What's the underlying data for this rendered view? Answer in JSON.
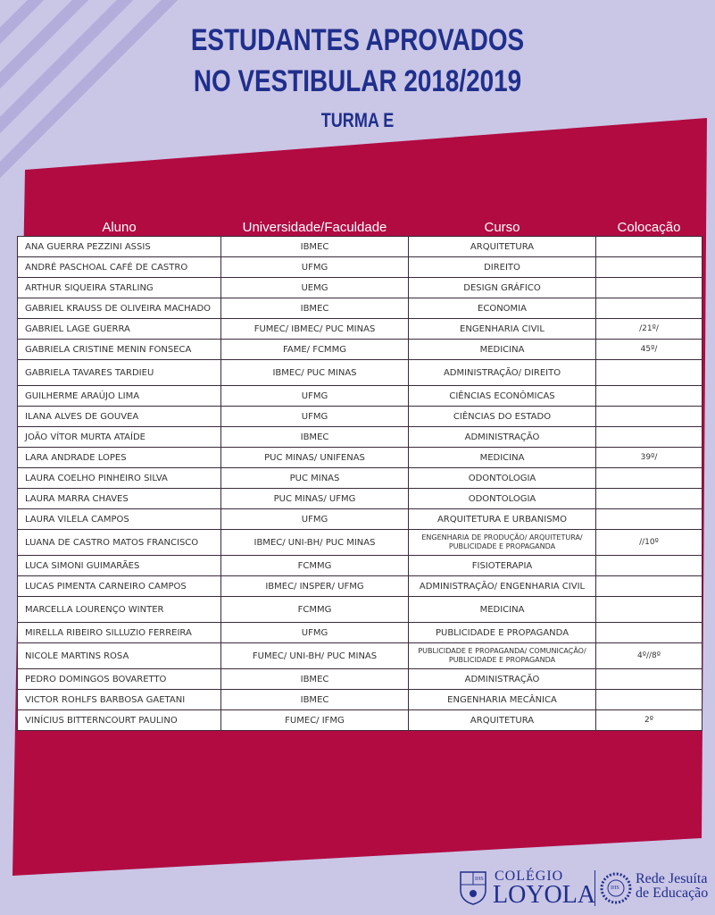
{
  "header": {
    "line1": "ESTUDANTES APROVADOS",
    "line2": "NO VESTIBULAR 2018/2019",
    "class": "TURMA E"
  },
  "colors": {
    "background": "#cac6e6",
    "panel": "#b10b42",
    "title": "#1f2f8c",
    "stripes": "#b3addb"
  },
  "table": {
    "columns": [
      "Aluno",
      "Universidade/Faculdade",
      "Curso",
      "Colocação"
    ],
    "rows": [
      {
        "aluno": "ANA GUERRA PEZZINI ASSIS",
        "univ": "IBMEC",
        "curso": "ARQUITETURA",
        "col": ""
      },
      {
        "aluno": "ANDRÉ PASCHOAL CAFÉ DE CASTRO",
        "univ": "UFMG",
        "curso": "DIREITO",
        "col": ""
      },
      {
        "aluno": "ARTHUR SIQUEIRA STARLING",
        "univ": "UEMG",
        "curso": "DESIGN GRÁFICO",
        "col": ""
      },
      {
        "aluno": "GABRIEL KRAUSS DE OLIVEIRA MACHADO",
        "univ": "IBMEC",
        "curso": "ECONOMIA",
        "col": ""
      },
      {
        "aluno": "GABRIEL LAGE GUERRA",
        "univ": "FUMEC/ IBMEC/ PUC MINAS",
        "curso": "ENGENHARIA CIVIL",
        "col": "/21º/"
      },
      {
        "aluno": "GABRIELA CRISTINE MENIN FONSECA",
        "univ": "FAME/ FCMMG",
        "curso": "MEDICINA",
        "col": "45º/"
      },
      {
        "aluno": "GABRIELA TAVARES TARDIEU",
        "univ": "IBMEC/ PUC MINAS",
        "curso": "ADMINISTRAÇÃO/ DIREITO",
        "col": ""
      },
      {
        "aluno": "GUILHERME ARAÚJO LIMA",
        "univ": "UFMG",
        "curso": "CIÊNCIAS ECONÔMICAS",
        "col": ""
      },
      {
        "aluno": "ILANA ALVES DE GOUVEA",
        "univ": "UFMG",
        "curso": "CIÊNCIAS DO ESTADO",
        "col": ""
      },
      {
        "aluno": "JOÃO VÍTOR MURTA ATAÍDE",
        "univ": "IBMEC",
        "curso": "ADMINISTRAÇÃO",
        "col": ""
      },
      {
        "aluno": "LARA ANDRADE LOPES",
        "univ": "PUC MINAS/ UNIFENAS",
        "curso": "MEDICINA",
        "col": "39º/"
      },
      {
        "aluno": "LAURA COELHO PINHEIRO SILVA",
        "univ": "PUC MINAS",
        "curso": "ODONTOLOGIA",
        "col": ""
      },
      {
        "aluno": "LAURA MARRA CHAVES",
        "univ": "PUC MINAS/ UFMG",
        "curso": "ODONTOLOGIA",
        "col": ""
      },
      {
        "aluno": "LAURA VILELA CAMPOS",
        "univ": "UFMG",
        "curso": "ARQUITETURA E URBANISMO",
        "col": ""
      },
      {
        "aluno": "LUANA DE CASTRO MATOS FRANCISCO",
        "univ": "IBMEC/ UNI-BH/ PUC MINAS",
        "curso": "ENGENHARIA DE PRODUÇÃO/ ARQUITETURA/ PUBLICIDADE E PROPAGANDA",
        "col": "//10º"
      },
      {
        "aluno": "LUCA SIMONI GUIMARÃES",
        "univ": "FCMMG",
        "curso": "FISIOTERAPIA",
        "col": ""
      },
      {
        "aluno": "LUCAS PIMENTA CARNEIRO CAMPOS",
        "univ": "IBMEC/ INSPER/ UFMG",
        "curso": "ADMINISTRAÇÃO/ ENGENHARIA CIVIL",
        "col": ""
      },
      {
        "aluno": "MARCELLA LOURENÇO WINTER",
        "univ": "FCMMG",
        "curso": "MEDICINA",
        "col": ""
      },
      {
        "aluno": "MIRELLA RIBEIRO SILLUZIO FERREIRA",
        "univ": "UFMG",
        "curso": "PUBLICIDADE E PROPAGANDA",
        "col": ""
      },
      {
        "aluno": "NICOLE MARTINS ROSA",
        "univ": "FUMEC/ UNI-BH/ PUC MINAS",
        "curso": "PUBLICIDADE E PROPAGANDA/ COMUNICAÇÃO/ PUBLICIDADE E PROPAGANDA",
        "col": "4º//8º"
      },
      {
        "aluno": "PEDRO DOMINGOS BOVARETTO",
        "univ": "IBMEC",
        "curso": "ADMINISTRAÇÃO",
        "col": ""
      },
      {
        "aluno": "VICTOR ROHLFS BARBOSA GAETANI",
        "univ": "IBMEC",
        "curso": "ENGENHARIA MECÂNICA",
        "col": ""
      },
      {
        "aluno": "VINÍCIUS BITTERNCOURT PAULINO",
        "univ": "FUMEC/ IFMG",
        "curso": "ARQUITETURA",
        "col": "2º"
      }
    ]
  },
  "footer": {
    "logo1_top": "COLÉGIO",
    "logo1_bottom": "LOYOLA",
    "logo2_line1": "Rede Jesuíta",
    "logo2_line2": "de Educação",
    "crest_text": "IHS"
  }
}
